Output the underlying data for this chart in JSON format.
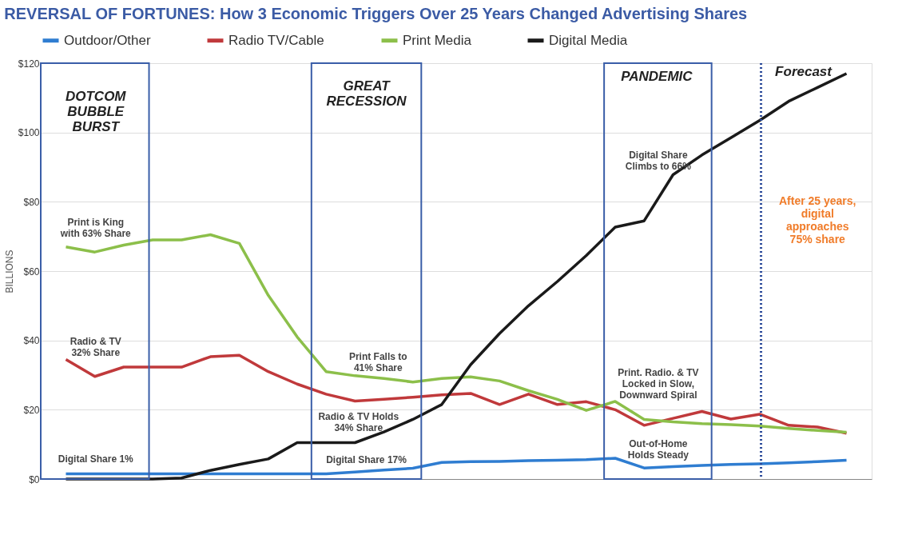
{
  "chart_data": {
    "type": "line",
    "title": "REVERSAL OF FORTUNES: How 3 Economic Triggers Over 25 Years Changed Advertising Shares",
    "ylabel": "BILLIONS",
    "categories": [
      null,
      null,
      null,
      null,
      null,
      null,
      null,
      null,
      null,
      null,
      null,
      null,
      null,
      null,
      null,
      null,
      null,
      null,
      null,
      null,
      null,
      null,
      null,
      null,
      null,
      null,
      null,
      null
    ],
    "tick_labels": "y",
    "ylim": [
      0,
      120
    ],
    "yticks": [
      {
        "value": 0,
        "label": "$0"
      },
      {
        "value": 20,
        "label": "$20"
      },
      {
        "value": 40,
        "label": "$40"
      },
      {
        "value": 60,
        "label": "$60"
      },
      {
        "value": 80,
        "label": "$80"
      },
      {
        "value": 100,
        "label": "$100"
      },
      {
        "value": 120,
        "label": "$120"
      }
    ],
    "grid": "y",
    "legend": "top",
    "line_style": "solid",
    "series": [
      {
        "name": "Outdoor/Other",
        "color": "#2f7dd1",
        "values": [
          1.5,
          1.5,
          1.5,
          1.5,
          1.5,
          1.5,
          1.5,
          1.5,
          1.5,
          1.5,
          2,
          2.6,
          3.1,
          4.8,
          5,
          5.1,
          5.3,
          5.4,
          5.6,
          6,
          3.2,
          3.6,
          3.9,
          4.2,
          4.4,
          4.7,
          5,
          5.4
        ]
      },
      {
        "name": "Radio TV/Cable",
        "color": "#c0393b",
        "values": [
          34.5,
          29.6,
          32.3,
          32.3,
          32.3,
          35.3,
          35.7,
          31,
          27.4,
          24.5,
          22.5,
          23,
          23.6,
          24.3,
          24.7,
          21.5,
          24.5,
          21.5,
          22.3,
          20,
          15.5,
          17.5,
          19.5,
          17.3,
          18.7,
          15.5,
          15,
          13.2
        ]
      },
      {
        "name": "Print Media",
        "color": "#8cbf4a",
        "values": [
          67,
          65.5,
          67.5,
          69,
          69,
          70.5,
          68,
          53,
          41,
          31,
          29.8,
          29,
          28,
          29,
          29.5,
          28.3,
          25.5,
          23,
          19.8,
          22.4,
          17.2,
          16.5,
          16,
          15.7,
          15.3,
          14.6,
          14,
          13.5
        ]
      },
      {
        "name": "Digital Media",
        "color": "#1a1a1a",
        "values": [
          0,
          0,
          0,
          0,
          0.3,
          2.5,
          4.2,
          5.8,
          10.5,
          10.5,
          10.5,
          13.6,
          17.2,
          21.5,
          33,
          42,
          50,
          57,
          64.5,
          72.7,
          74.5,
          87.8,
          93.5,
          98.5,
          103.5,
          109,
          113,
          117
        ]
      }
    ],
    "annotations": [
      "Print is King\nwith 63% Share",
      "Radio & TV\n32% Share",
      "Digital Share 1%",
      "Print Falls to\n41% Share",
      "Radio & TV Holds\n34% Share",
      "Digital Share 17%",
      "Digital Share\nClimbs to 66%",
      "Print. Radio. & TV\nLocked in Slow,\nDownward Spiral",
      "Out-of-Home\nHolds Steady",
      "After 25 years,\ndigital\napproaches\n75% share",
      "DOTCOM\nBUBBLE\nBURST",
      "GREAT\nRECESSION",
      "PANDEMIC",
      "Forecast"
    ]
  }
}
